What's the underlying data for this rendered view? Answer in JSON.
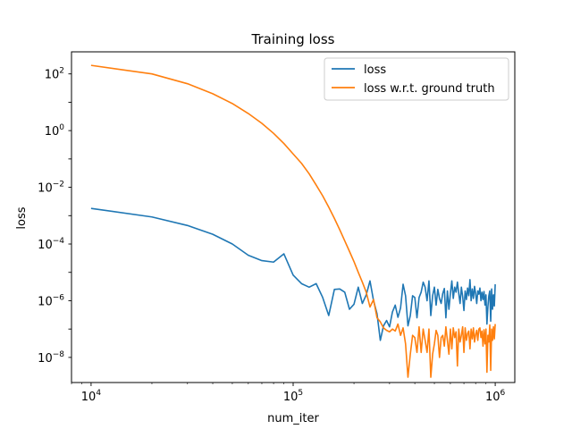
{
  "chart_data": {
    "type": "line",
    "title": "Training loss",
    "xlabel": "num_iter",
    "ylabel": "loss",
    "xscale": "log",
    "yscale": "log",
    "xlim": [
      8000,
      1250000
    ],
    "ylim": [
      1.3e-09,
      600
    ],
    "grid": false,
    "legend_position": "top-right",
    "x_ticks": [
      {
        "value": 10000,
        "base": "10",
        "exp": "4"
      },
      {
        "value": 100000,
        "base": "10",
        "exp": "5"
      },
      {
        "value": 1000000,
        "base": "10",
        "exp": "6"
      }
    ],
    "y_ticks": [
      {
        "value": 1e-08,
        "base": "10",
        "exp": "−8"
      },
      {
        "value": 1e-06,
        "base": "10",
        "exp": "−6"
      },
      {
        "value": 0.0001,
        "base": "10",
        "exp": "−4"
      },
      {
        "value": 0.01,
        "base": "10",
        "exp": "−2"
      },
      {
        "value": 1,
        "base": "10",
        "exp": "0"
      },
      {
        "value": 100,
        "base": "10",
        "exp": "2"
      }
    ],
    "series": [
      {
        "name": "loss",
        "color": "#1f77b4",
        "points": [
          [
            10000,
            0.0018
          ],
          [
            20000,
            0.0009
          ],
          [
            30000,
            0.00045
          ],
          [
            40000,
            0.00022
          ],
          [
            50000,
            0.0001
          ],
          [
            60000,
            4e-05
          ],
          [
            70000,
            2.6e-05
          ],
          [
            80000,
            2.3e-05
          ],
          [
            90000,
            4.5e-05
          ],
          [
            100000,
            8e-06
          ],
          [
            110000,
            4e-06
          ],
          [
            120000,
            3e-06
          ],
          [
            130000,
            4e-06
          ],
          [
            140000,
            1.3e-06
          ],
          [
            150000,
            3e-07
          ],
          [
            160000,
            2.5e-06
          ],
          [
            170000,
            2.6e-06
          ],
          [
            180000,
            2e-06
          ],
          [
            190000,
            5e-07
          ],
          [
            200000,
            7.5e-07
          ],
          [
            210000,
            3e-06
          ],
          [
            220000,
            8e-07
          ],
          [
            230000,
            1.6e-06
          ],
          [
            240000,
            5e-06
          ],
          [
            250000,
            1e-06
          ],
          [
            260000,
            3.5e-07
          ],
          [
            270000,
            4e-08
          ],
          [
            280000,
            1.3e-07
          ],
          [
            290000,
            2e-07
          ],
          [
            300000,
            1.2e-07
          ],
          [
            310000,
            4e-07
          ],
          [
            320000,
            7e-07
          ],
          [
            330000,
            2.6e-07
          ],
          [
            340000,
            5.5e-07
          ],
          [
            350000,
            3.8e-06
          ],
          [
            360000,
            1.5e-06
          ],
          [
            370000,
            1.3e-07
          ],
          [
            380000,
            3e-07
          ],
          [
            390000,
            1.5e-06
          ],
          [
            400000,
            1.3e-06
          ],
          [
            410000,
            2.5e-07
          ],
          [
            420000,
            1.3e-06
          ],
          [
            430000,
            2e-06
          ],
          [
            440000,
            4.5e-06
          ],
          [
            450000,
            3e-06
          ],
          [
            460000,
            1e-06
          ],
          [
            470000,
            5e-06
          ],
          [
            480000,
            3e-07
          ],
          [
            490000,
            1.5e-06
          ],
          [
            500000,
            3e-06
          ],
          [
            510000,
            7e-07
          ],
          [
            520000,
            2.5e-06
          ],
          [
            530000,
            1.2e-06
          ],
          [
            540000,
            8e-07
          ],
          [
            550000,
            1.8e-06
          ],
          [
            560000,
            2.7e-06
          ],
          [
            570000,
            2.5e-07
          ],
          [
            580000,
            2.2e-06
          ],
          [
            590000,
            5e-07
          ],
          [
            600000,
            1.8e-06
          ],
          [
            610000,
            5e-06
          ],
          [
            620000,
            1.2e-06
          ],
          [
            630000,
            3e-06
          ],
          [
            640000,
            2e-06
          ],
          [
            650000,
            4.5e-06
          ],
          [
            660000,
            1.8e-06
          ],
          [
            670000,
            8e-07
          ],
          [
            680000,
            3e-06
          ],
          [
            690000,
            1.4e-06
          ],
          [
            700000,
            4.5e-07
          ],
          [
            710000,
            2.2e-06
          ],
          [
            720000,
            1.1e-06
          ],
          [
            730000,
            2.8e-06
          ],
          [
            740000,
            1.5e-06
          ],
          [
            750000,
            5.5e-06
          ],
          [
            760000,
            1e-06
          ],
          [
            770000,
            2.6e-06
          ],
          [
            780000,
            1.2e-06
          ],
          [
            790000,
            3.2e-06
          ],
          [
            800000,
            1.8e-06
          ],
          [
            810000,
            8e-07
          ],
          [
            820000,
            2.2e-06
          ],
          [
            830000,
            1.7e-06
          ],
          [
            840000,
            2.8e-06
          ],
          [
            850000,
            1e-06
          ],
          [
            860000,
            2e-06
          ],
          [
            870000,
            1.1e-06
          ],
          [
            880000,
            2.1e-06
          ],
          [
            890000,
            7e-07
          ],
          [
            900000,
            1.6e-06
          ],
          [
            910000,
            1.5e-07
          ],
          [
            920000,
            6e-07
          ],
          [
            930000,
            1.5e-06
          ],
          [
            940000,
            2.2e-06
          ],
          [
            950000,
            1.9e-07
          ],
          [
            960000,
            2.6e-06
          ],
          [
            970000,
            5e-07
          ],
          [
            980000,
            1.6e-06
          ],
          [
            990000,
            6.5e-07
          ],
          [
            1000000,
            3.8e-06
          ]
        ]
      },
      {
        "name": "loss w.r.t. ground truth",
        "color": "#ff7f0e",
        "points": [
          [
            10000,
            200
          ],
          [
            20000,
            100
          ],
          [
            30000,
            45
          ],
          [
            40000,
            20
          ],
          [
            50000,
            9
          ],
          [
            60000,
            4
          ],
          [
            70000,
            1.8
          ],
          [
            80000,
            0.8
          ],
          [
            90000,
            0.35
          ],
          [
            100000,
            0.15
          ],
          [
            110000,
            0.07
          ],
          [
            120000,
            0.03
          ],
          [
            130000,
            0.012
          ],
          [
            140000,
            0.005
          ],
          [
            150000,
            0.002
          ],
          [
            160000,
            0.0008
          ],
          [
            170000,
            0.00032
          ],
          [
            180000,
            0.00013
          ],
          [
            190000,
            5.5e-05
          ],
          [
            200000,
            2.4e-05
          ],
          [
            210000,
            1e-05
          ],
          [
            220000,
            4.5e-06
          ],
          [
            230000,
            2e-06
          ],
          [
            240000,
            6e-07
          ],
          [
            250000,
            1.1e-06
          ],
          [
            260000,
            2.5e-07
          ],
          [
            270000,
            1.8e-07
          ],
          [
            280000,
            1.1e-07
          ],
          [
            290000,
            9e-08
          ],
          [
            300000,
            8e-08
          ],
          [
            310000,
            1e-07
          ],
          [
            320000,
            8.5e-08
          ],
          [
            330000,
            1.5e-07
          ],
          [
            340000,
            6e-08
          ],
          [
            350000,
            1.1e-07
          ],
          [
            360000,
            3e-08
          ],
          [
            370000,
            2e-09
          ],
          [
            380000,
            1.3e-08
          ],
          [
            390000,
            6e-08
          ],
          [
            400000,
            5e-08
          ],
          [
            410000,
            1.5e-08
          ],
          [
            420000,
            1.2e-07
          ],
          [
            430000,
            1.5e-08
          ],
          [
            440000,
            1e-07
          ],
          [
            450000,
            4e-08
          ],
          [
            460000,
            1.5e-08
          ],
          [
            470000,
            1e-07
          ],
          [
            480000,
            2e-09
          ],
          [
            490000,
            1.3e-08
          ],
          [
            500000,
            3e-08
          ],
          [
            510000,
            9e-08
          ],
          [
            520000,
            6e-08
          ],
          [
            530000,
            1e-08
          ],
          [
            540000,
            5e-08
          ],
          [
            550000,
            6e-08
          ],
          [
            560000,
            2.5e-08
          ],
          [
            570000,
            1.2e-07
          ],
          [
            580000,
            4e-08
          ],
          [
            590000,
            1.3e-08
          ],
          [
            600000,
            1e-07
          ],
          [
            610000,
            2e-08
          ],
          [
            620000,
            1.1e-07
          ],
          [
            630000,
            5e-08
          ],
          [
            640000,
            8e-08
          ],
          [
            650000,
            5e-09
          ],
          [
            660000,
            1e-07
          ],
          [
            670000,
            3.5e-08
          ],
          [
            680000,
            6e-08
          ],
          [
            690000,
            1.2e-07
          ],
          [
            700000,
            1.5e-08
          ],
          [
            710000,
            1.1e-07
          ],
          [
            720000,
            4e-08
          ],
          [
            730000,
            7e-08
          ],
          [
            740000,
            8.5e-08
          ],
          [
            750000,
            2e-08
          ],
          [
            760000,
            1e-07
          ],
          [
            770000,
            4.5e-08
          ],
          [
            780000,
            1.1e-07
          ],
          [
            790000,
            3.5e-08
          ],
          [
            800000,
            6.5e-08
          ],
          [
            810000,
            9e-08
          ],
          [
            820000,
            4e-08
          ],
          [
            830000,
            1e-07
          ],
          [
            840000,
            1.1e-07
          ],
          [
            850000,
            5e-08
          ],
          [
            860000,
            8.5e-08
          ],
          [
            870000,
            2.5e-08
          ],
          [
            880000,
            9.5e-08
          ],
          [
            890000,
            3e-08
          ],
          [
            900000,
            1e-07
          ],
          [
            910000,
            3e-09
          ],
          [
            920000,
            6e-08
          ],
          [
            930000,
            3.5e-08
          ],
          [
            940000,
            1.4e-07
          ],
          [
            950000,
            3.5e-09
          ],
          [
            960000,
            1e-07
          ],
          [
            970000,
            4e-08
          ],
          [
            980000,
            1.2e-07
          ],
          [
            990000,
            4.5e-08
          ],
          [
            1000000,
            1.5e-07
          ]
        ]
      }
    ]
  }
}
